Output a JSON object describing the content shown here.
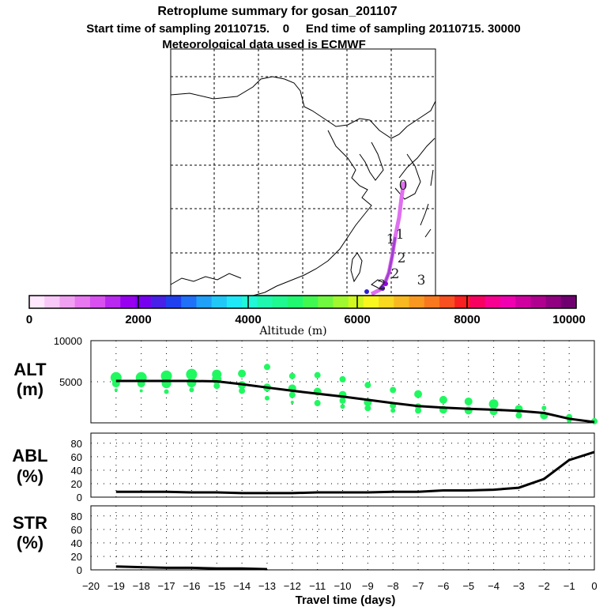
{
  "title": "Retroplume summary for gosan_201107",
  "subtitle": "Start time of sampling 20110715.    0     End time of sampling 20110715. 30000",
  "met_line": "Meteorological data used is ECMWF",
  "map": {
    "track_labels": [
      "0",
      "1",
      "1",
      "2",
      "2",
      "2",
      "3"
    ],
    "colors": {
      "track": "#e070f0",
      "track_dark": "#a040d0"
    }
  },
  "colorbar": {
    "label": "Altitude (m)",
    "ticks": [
      "0",
      "2000",
      "4000",
      "6000",
      "8000",
      "10000"
    ],
    "colors": [
      "#ffe8ff",
      "#f8c8f8",
      "#f0a0f0",
      "#e878f0",
      "#d850f0",
      "#b828f0",
      "#9800f0",
      "#7800f0",
      "#4820e8",
      "#2040f0",
      "#2070f8",
      "#20a0f8",
      "#20c8f8",
      "#20e8f8",
      "#20f8d8",
      "#20f8b0",
      "#20f890",
      "#20f870",
      "#40f850",
      "#70f840",
      "#a0f830",
      "#d0f820",
      "#f8f820",
      "#f8d820",
      "#f8b820",
      "#f89820",
      "#f87820",
      "#f85020",
      "#f82020",
      "#f80060",
      "#f80090",
      "#f000b0",
      "#d000a0",
      "#b00090",
      "#900080",
      "#700070"
    ]
  },
  "chart_data": [
    {
      "type": "scatter+line",
      "panel": "ALT",
      "ylabel": "ALT\n(m)",
      "ylabel_lines": [
        "ALT",
        "(m)"
      ],
      "ylim": [
        0,
        10000
      ],
      "yticks": [
        0,
        5000,
        10000
      ],
      "ytick_labels": [
        "5000",
        "10000"
      ],
      "xlim": [
        -20,
        0
      ],
      "line": {
        "x": [
          -19,
          -18,
          -17,
          -16,
          -15,
          -14,
          -13,
          -12,
          -11,
          -10,
          -9,
          -8,
          -7,
          -6,
          -5,
          -4,
          -3,
          -2,
          -1,
          0
        ],
        "y": [
          5100,
          5100,
          5100,
          5100,
          5050,
          4700,
          4300,
          3900,
          3550,
          3200,
          2800,
          2400,
          2050,
          1850,
          1700,
          1600,
          1450,
          1200,
          500,
          100
        ]
      },
      "points": [
        {
          "x": -19,
          "y": 5500,
          "s": 7
        },
        {
          "x": -19,
          "y": 4800,
          "s": 5
        },
        {
          "x": -19,
          "y": 4000,
          "s": 2
        },
        {
          "x": -18,
          "y": 5500,
          "s": 7
        },
        {
          "x": -18,
          "y": 4800,
          "s": 5
        },
        {
          "x": -18,
          "y": 3900,
          "s": 2
        },
        {
          "x": -17,
          "y": 5700,
          "s": 7
        },
        {
          "x": -17,
          "y": 4800,
          "s": 6
        },
        {
          "x": -17,
          "y": 3800,
          "s": 3
        },
        {
          "x": -16,
          "y": 5900,
          "s": 7
        },
        {
          "x": -16,
          "y": 4900,
          "s": 6
        },
        {
          "x": -16,
          "y": 4000,
          "s": 3
        },
        {
          "x": -15,
          "y": 5900,
          "s": 6
        },
        {
          "x": -15,
          "y": 5300,
          "s": 6
        },
        {
          "x": -15,
          "y": 4500,
          "s": 4
        },
        {
          "x": -14,
          "y": 6000,
          "s": 5
        },
        {
          "x": -14,
          "y": 4600,
          "s": 5
        },
        {
          "x": -14,
          "y": 3900,
          "s": 4
        },
        {
          "x": -13,
          "y": 6800,
          "s": 4
        },
        {
          "x": -13,
          "y": 4300,
          "s": 5
        },
        {
          "x": -13,
          "y": 3000,
          "s": 3
        },
        {
          "x": -12,
          "y": 5700,
          "s": 4
        },
        {
          "x": -12,
          "y": 4200,
          "s": 5
        },
        {
          "x": -12,
          "y": 3400,
          "s": 4
        },
        {
          "x": -12,
          "y": 2500,
          "s": 2
        },
        {
          "x": -11,
          "y": 5800,
          "s": 4
        },
        {
          "x": -11,
          "y": 3800,
          "s": 5
        },
        {
          "x": -11,
          "y": 2400,
          "s": 4
        },
        {
          "x": -10,
          "y": 5300,
          "s": 4
        },
        {
          "x": -10,
          "y": 3400,
          "s": 5
        },
        {
          "x": -10,
          "y": 2700,
          "s": 4
        },
        {
          "x": -10,
          "y": 2000,
          "s": 3
        },
        {
          "x": -9,
          "y": 4600,
          "s": 4
        },
        {
          "x": -9,
          "y": 2500,
          "s": 5
        },
        {
          "x": -9,
          "y": 1800,
          "s": 4
        },
        {
          "x": -8,
          "y": 4000,
          "s": 4
        },
        {
          "x": -8,
          "y": 2100,
          "s": 4
        },
        {
          "x": -8,
          "y": 1500,
          "s": 3
        },
        {
          "x": -7,
          "y": 3500,
          "s": 5
        },
        {
          "x": -7,
          "y": 2000,
          "s": 4
        },
        {
          "x": -7,
          "y": 1500,
          "s": 4
        },
        {
          "x": -6,
          "y": 2800,
          "s": 5
        },
        {
          "x": -6,
          "y": 1600,
          "s": 5
        },
        {
          "x": -5,
          "y": 2600,
          "s": 5
        },
        {
          "x": -5,
          "y": 1500,
          "s": 5
        },
        {
          "x": -4,
          "y": 2300,
          "s": 6
        },
        {
          "x": -4,
          "y": 1400,
          "s": 5
        },
        {
          "x": -3,
          "y": 1700,
          "s": 5
        },
        {
          "x": -3,
          "y": 900,
          "s": 4
        },
        {
          "x": -2,
          "y": 1800,
          "s": 3
        },
        {
          "x": -2,
          "y": 900,
          "s": 5
        },
        {
          "x": -1,
          "y": 700,
          "s": 4
        },
        {
          "x": -1,
          "y": 300,
          "s": 3
        },
        {
          "x": 0,
          "y": 200,
          "s": 4
        }
      ],
      "colors": {
        "points": "#20f860",
        "line": "#000000"
      }
    },
    {
      "type": "line",
      "panel": "ABL",
      "ylabel_lines": [
        "ABL",
        "(%)"
      ],
      "ylim": [
        0,
        100
      ],
      "yticks": [
        0,
        20,
        40,
        60,
        80
      ],
      "ytick_labels": [
        "0",
        "20",
        "40",
        "60",
        "80"
      ],
      "xlim": [
        -20,
        0
      ],
      "line": {
        "x": [
          -19,
          -18,
          -17,
          -16,
          -15,
          -14,
          -13,
          -12,
          -11,
          -10,
          -9,
          -8,
          -7,
          -6,
          -5,
          -4,
          -3,
          -2,
          -1,
          0
        ],
        "y": [
          8,
          8,
          8,
          7,
          7,
          6,
          6,
          6,
          7,
          7,
          7,
          8,
          8,
          10,
          10,
          11,
          14,
          27,
          55,
          67
        ]
      }
    },
    {
      "type": "line",
      "panel": "STR",
      "ylabel_lines": [
        "STR",
        "(%)"
      ],
      "ylim": [
        0,
        100
      ],
      "yticks": [
        0,
        20,
        40,
        60,
        80
      ],
      "ytick_labels": [
        "0",
        "20",
        "40",
        "60",
        "80"
      ],
      "xlim": [
        -20,
        0
      ],
      "xlabel": "Travel time (days)",
      "xticks": [
        -20,
        -19,
        -18,
        -17,
        -16,
        -15,
        -14,
        -13,
        -12,
        -11,
        -10,
        -9,
        -8,
        -7,
        -6,
        -5,
        -4,
        -3,
        -2,
        -1,
        0
      ],
      "xtick_labels": [
        "−20",
        "−19",
        "−18",
        "−17",
        "−16",
        "−15",
        "−14",
        "−13",
        "−12",
        "−11",
        "−10",
        "−9",
        "−8",
        "−7",
        "−6",
        "−5",
        "−4",
        "−3",
        "−2",
        "−1",
        "0"
      ],
      "line": {
        "x": [
          -19,
          -18,
          -17,
          -16,
          -15,
          -14,
          -13
        ],
        "y": [
          5,
          4,
          3,
          3,
          2,
          2,
          1
        ]
      }
    }
  ]
}
